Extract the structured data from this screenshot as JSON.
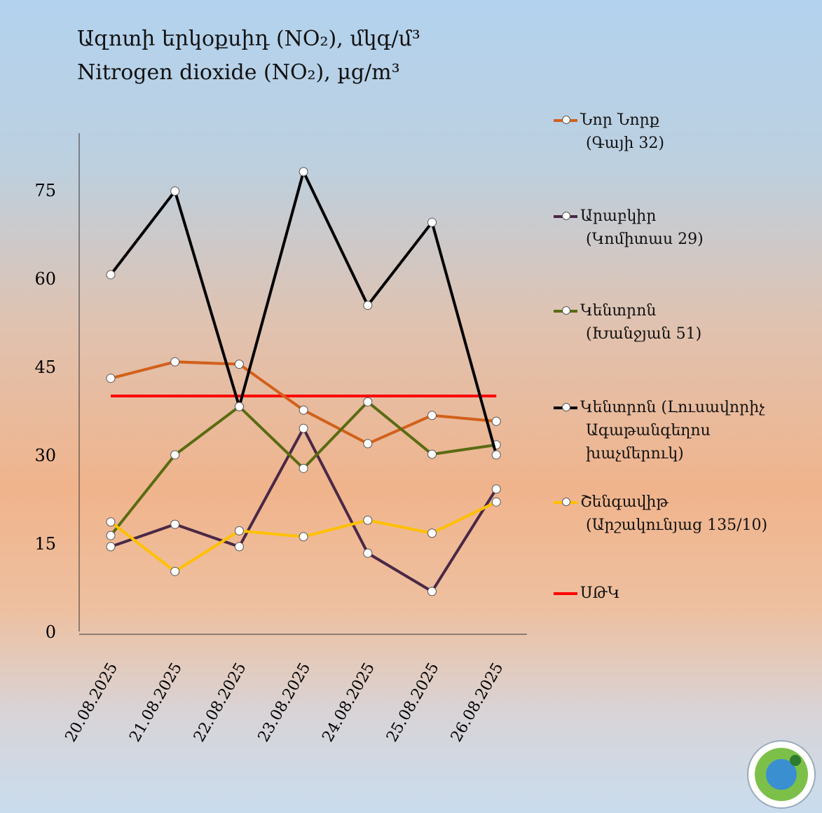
{
  "chart_data": {
    "type": "line",
    "title": "Ազոտի  երկօքսիդ (NO₂), մկգ/մ³",
    "subtitle": "Nitrogen  dioxide (NO₂), µg/m³",
    "xlabel": "",
    "ylabel": "",
    "ylim": [
      0,
      80
    ],
    "yticks": [
      "0",
      "15",
      "30",
      "45",
      "60",
      "75"
    ],
    "categories": [
      "20.08.2025",
      "21.08.2025",
      "22.08.2025",
      "23.08.2025",
      "24.08.2025",
      "25.08.2025",
      "26.08.2025"
    ],
    "legend_position": "right",
    "series": [
      {
        "name": "Նոր Նորք",
        "sub": "(Գայի 32)",
        "color": "#d2601a",
        "marker": true,
        "values": [
          43,
          45.8,
          45.4,
          37.6,
          31.9,
          36.7,
          35.7
        ]
      },
      {
        "name": "Արաբկիր",
        "sub": "(Կոմիտաս 29)",
        "color": "#4a2846",
        "marker": true,
        "values": [
          14.4,
          18.2,
          14.4,
          34.5,
          13.3,
          6.8,
          24.2
        ]
      },
      {
        "name": "Կենտրոն",
        "sub": "(Խանջյան 51)",
        "color": "#5a6b12",
        "marker": true,
        "values": [
          16.3,
          30,
          38.2,
          27.7,
          39,
          30.1,
          31.7
        ]
      },
      {
        "name": "Կենտրոն (Լուսավորիչ",
        "sub": "Ագաթանգեղոս",
        "sub2": "խաչմերուկ)",
        "color": "#000000",
        "marker": true,
        "values": [
          60.6,
          74.8,
          38.2,
          78.1,
          55.4,
          69.5,
          30
        ]
      },
      {
        "name": "Շենգավիթ",
        "sub": "(Արշակունյաց 135/10)",
        "color": "#ffc000",
        "marker": true,
        "values": [
          18.6,
          10.2,
          17.1,
          16.1,
          18.9,
          16.7,
          22
        ]
      },
      {
        "name": "ՍԹԿ",
        "color": "#ff0000",
        "marker": false,
        "values": [
          40,
          40,
          40,
          40,
          40,
          40,
          40
        ]
      }
    ]
  }
}
